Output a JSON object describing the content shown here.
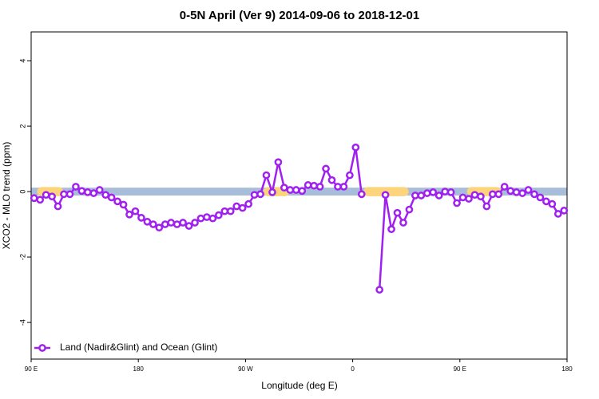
{
  "chart_data": {
    "type": "line",
    "title": "0-5N April (Ver 9)   2014-09-06 to 2018-12-01",
    "xlabel": "Longitude (deg E)",
    "ylabel": "XCO2 - MLO trend (ppm)",
    "xlim": [
      90,
      540
    ],
    "xticks": [
      {
        "value": 90,
        "label": "90 E"
      },
      {
        "value": 180,
        "label": "180"
      },
      {
        "value": 270,
        "label": "90 W"
      },
      {
        "value": 360,
        "label": "0"
      },
      {
        "value": 450,
        "label": "90 E"
      },
      {
        "value": 540,
        "label": "180"
      }
    ],
    "ylim": [
      -5.12,
      4.88
    ],
    "yticks": [
      -4,
      -2,
      0,
      2,
      4
    ],
    "band": {
      "color": "#a7bdd9",
      "halfwidth": 0.12
    },
    "land_band": {
      "color": "#fbd47c",
      "halfwidth": 0.14,
      "segments": [
        [
          95,
          117
        ],
        [
          285,
          307
        ],
        [
          369,
          407
        ],
        [
          456,
          485
        ]
      ]
    },
    "legend": "bottom-left",
    "x": [
      92.5,
      97.5,
      102.5,
      107.5,
      112.5,
      117.5,
      122.5,
      127.5,
      132.5,
      137.5,
      142.5,
      147.5,
      152.5,
      157.5,
      162.5,
      167.5,
      172.5,
      177.5,
      182.5,
      187.5,
      192.5,
      197.5,
      202.5,
      207.5,
      212.5,
      217.5,
      222.5,
      227.5,
      232.5,
      237.5,
      242.5,
      247.5,
      252.5,
      257.5,
      262.5,
      267.5,
      272.5,
      277.5,
      282.5,
      287.5,
      292.5,
      297.5,
      302.5,
      307.5,
      312.5,
      317.5,
      322.5,
      327.5,
      332.5,
      337.5,
      342.5,
      347.5,
      352.5,
      357.5,
      362.5,
      367.5,
      372.5,
      377.5,
      382.5,
      387.5,
      392.5,
      397.5,
      402.5,
      407.5,
      412.5,
      417.5,
      422.5,
      427.5,
      432.5,
      437.5,
      442.5,
      447.5,
      452.5,
      457.5,
      462.5,
      467.5,
      472.5,
      477.5,
      482.5,
      487.5,
      492.5,
      497.5,
      502.5,
      507.5,
      512.5,
      517.5,
      522.5,
      527.5,
      532.5,
      537.5
    ],
    "series": [
      {
        "name": "Land (Nadir&Glint) and Ocean (Glint)",
        "color": "#a020f0",
        "values": [
          -0.2,
          -0.25,
          -0.1,
          -0.15,
          -0.45,
          -0.08,
          -0.08,
          0.15,
          0.02,
          -0.02,
          -0.05,
          0.05,
          -0.1,
          -0.18,
          -0.3,
          -0.4,
          -0.7,
          -0.6,
          -0.8,
          -0.92,
          -1.0,
          -1.1,
          -1.0,
          -0.95,
          -1.0,
          -0.95,
          -1.05,
          -0.95,
          -0.82,
          -0.78,
          -0.82,
          -0.72,
          -0.6,
          -0.6,
          -0.45,
          -0.5,
          -0.38,
          -0.1,
          -0.08,
          0.5,
          -0.02,
          0.9,
          0.12,
          0.05,
          0.05,
          0.02,
          0.2,
          0.18,
          0.15,
          0.7,
          0.35,
          0.15,
          0.15,
          0.5,
          1.35,
          -0.08,
          null,
          null,
          -3.0,
          -0.1,
          -1.15,
          -0.65,
          -0.95,
          -0.55,
          -0.12,
          -0.12,
          -0.05,
          -0.02,
          -0.12,
          0.0,
          -0.02,
          -0.35,
          -0.18,
          -0.22,
          -0.1,
          -0.15,
          -0.45,
          -0.08,
          -0.08,
          0.15,
          0.02,
          -0.02,
          -0.05,
          0.05,
          -0.08,
          -0.18,
          -0.3,
          -0.38,
          -0.68,
          -0.58
        ]
      }
    ]
  }
}
